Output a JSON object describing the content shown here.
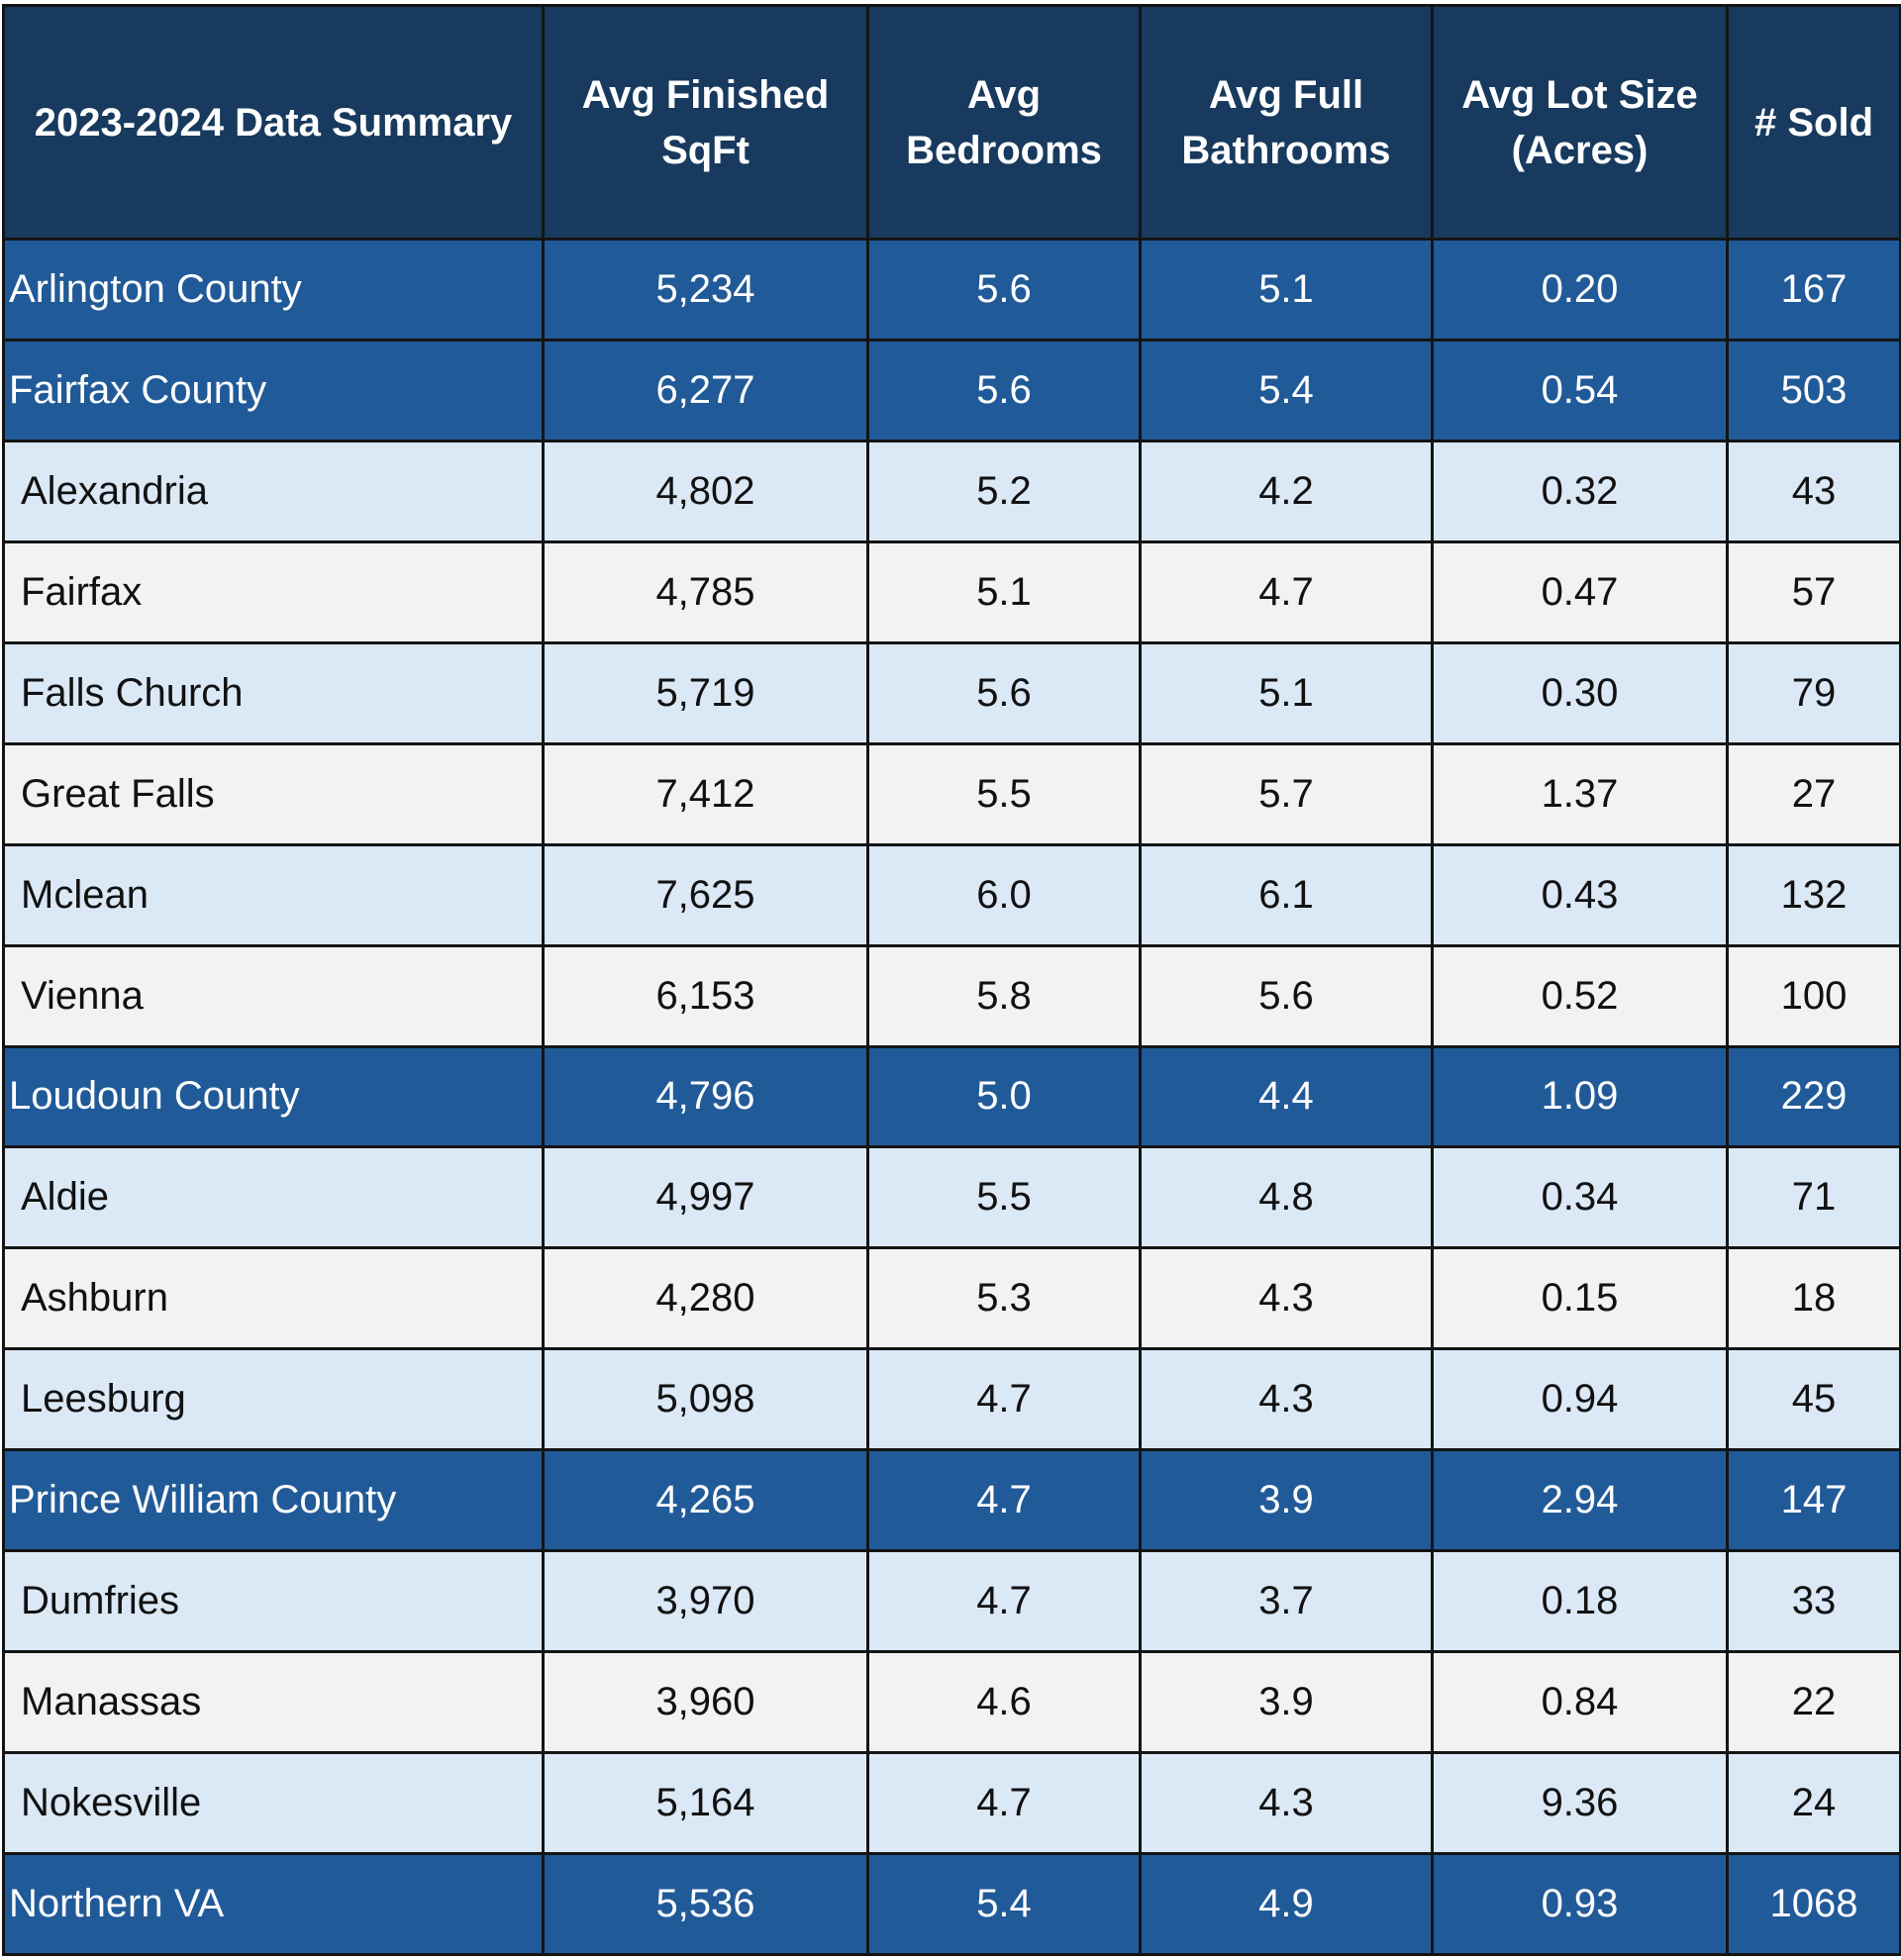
{
  "table": {
    "headers": [
      "2023-2024 Data Summary",
      "Avg Finished SqFt",
      "Avg Bedrooms",
      "Avg Full Bathrooms",
      "Avg Lot Size (Acres)",
      "# Sold"
    ],
    "rows": [
      {
        "type": "summary",
        "cells": [
          "Arlington County",
          "5,234",
          "5.6",
          "5.1",
          "0.20",
          "167"
        ]
      },
      {
        "type": "summary",
        "cells": [
          "Fairfax County",
          "6,277",
          "5.6",
          "5.4",
          "0.54",
          "503"
        ]
      },
      {
        "type": "light",
        "cells": [
          "Alexandria",
          "4,802",
          "5.2",
          "4.2",
          "0.32",
          "43"
        ]
      },
      {
        "type": "gray",
        "cells": [
          "Fairfax",
          "4,785",
          "5.1",
          "4.7",
          "0.47",
          "57"
        ]
      },
      {
        "type": "light",
        "cells": [
          "Falls Church",
          "5,719",
          "5.6",
          "5.1",
          "0.30",
          "79"
        ]
      },
      {
        "type": "gray",
        "cells": [
          "Great Falls",
          "7,412",
          "5.5",
          "5.7",
          "1.37",
          "27"
        ]
      },
      {
        "type": "light",
        "cells": [
          "Mclean",
          "7,625",
          "6.0",
          "6.1",
          "0.43",
          "132"
        ]
      },
      {
        "type": "gray",
        "cells": [
          "Vienna",
          "6,153",
          "5.8",
          "5.6",
          "0.52",
          "100"
        ]
      },
      {
        "type": "summary",
        "cells": [
          "Loudoun County",
          "4,796",
          "5.0",
          "4.4",
          "1.09",
          "229"
        ]
      },
      {
        "type": "light",
        "cells": [
          "Aldie",
          "4,997",
          "5.5",
          "4.8",
          "0.34",
          "71"
        ]
      },
      {
        "type": "gray",
        "cells": [
          "Ashburn",
          "4,280",
          "5.3",
          "4.3",
          "0.15",
          "18"
        ]
      },
      {
        "type": "light",
        "cells": [
          "Leesburg",
          "5,098",
          "4.7",
          "4.3",
          "0.94",
          "45"
        ]
      },
      {
        "type": "summary",
        "cells": [
          "Prince William County",
          "4,265",
          "4.7",
          "3.9",
          "2.94",
          "147"
        ]
      },
      {
        "type": "light",
        "cells": [
          "Dumfries",
          "3,970",
          "4.7",
          "3.7",
          "0.18",
          "33"
        ]
      },
      {
        "type": "gray",
        "cells": [
          "Manassas",
          "3,960",
          "4.6",
          "3.9",
          "0.84",
          "22"
        ]
      },
      {
        "type": "light",
        "cells": [
          "Nokesville",
          "5,164",
          "4.7",
          "4.3",
          "9.36",
          "24"
        ]
      },
      {
        "type": "summary",
        "cells": [
          "Northern VA",
          "5,536",
          "5.4",
          "4.9",
          "0.93",
          "1068"
        ]
      }
    ],
    "colors": {
      "header_bg": "#173a5e",
      "summary_bg": "#215a98",
      "light_row_bg": "#dbe8f6",
      "gray_row_bg": "#f2f2f2",
      "border": "#141414"
    }
  }
}
